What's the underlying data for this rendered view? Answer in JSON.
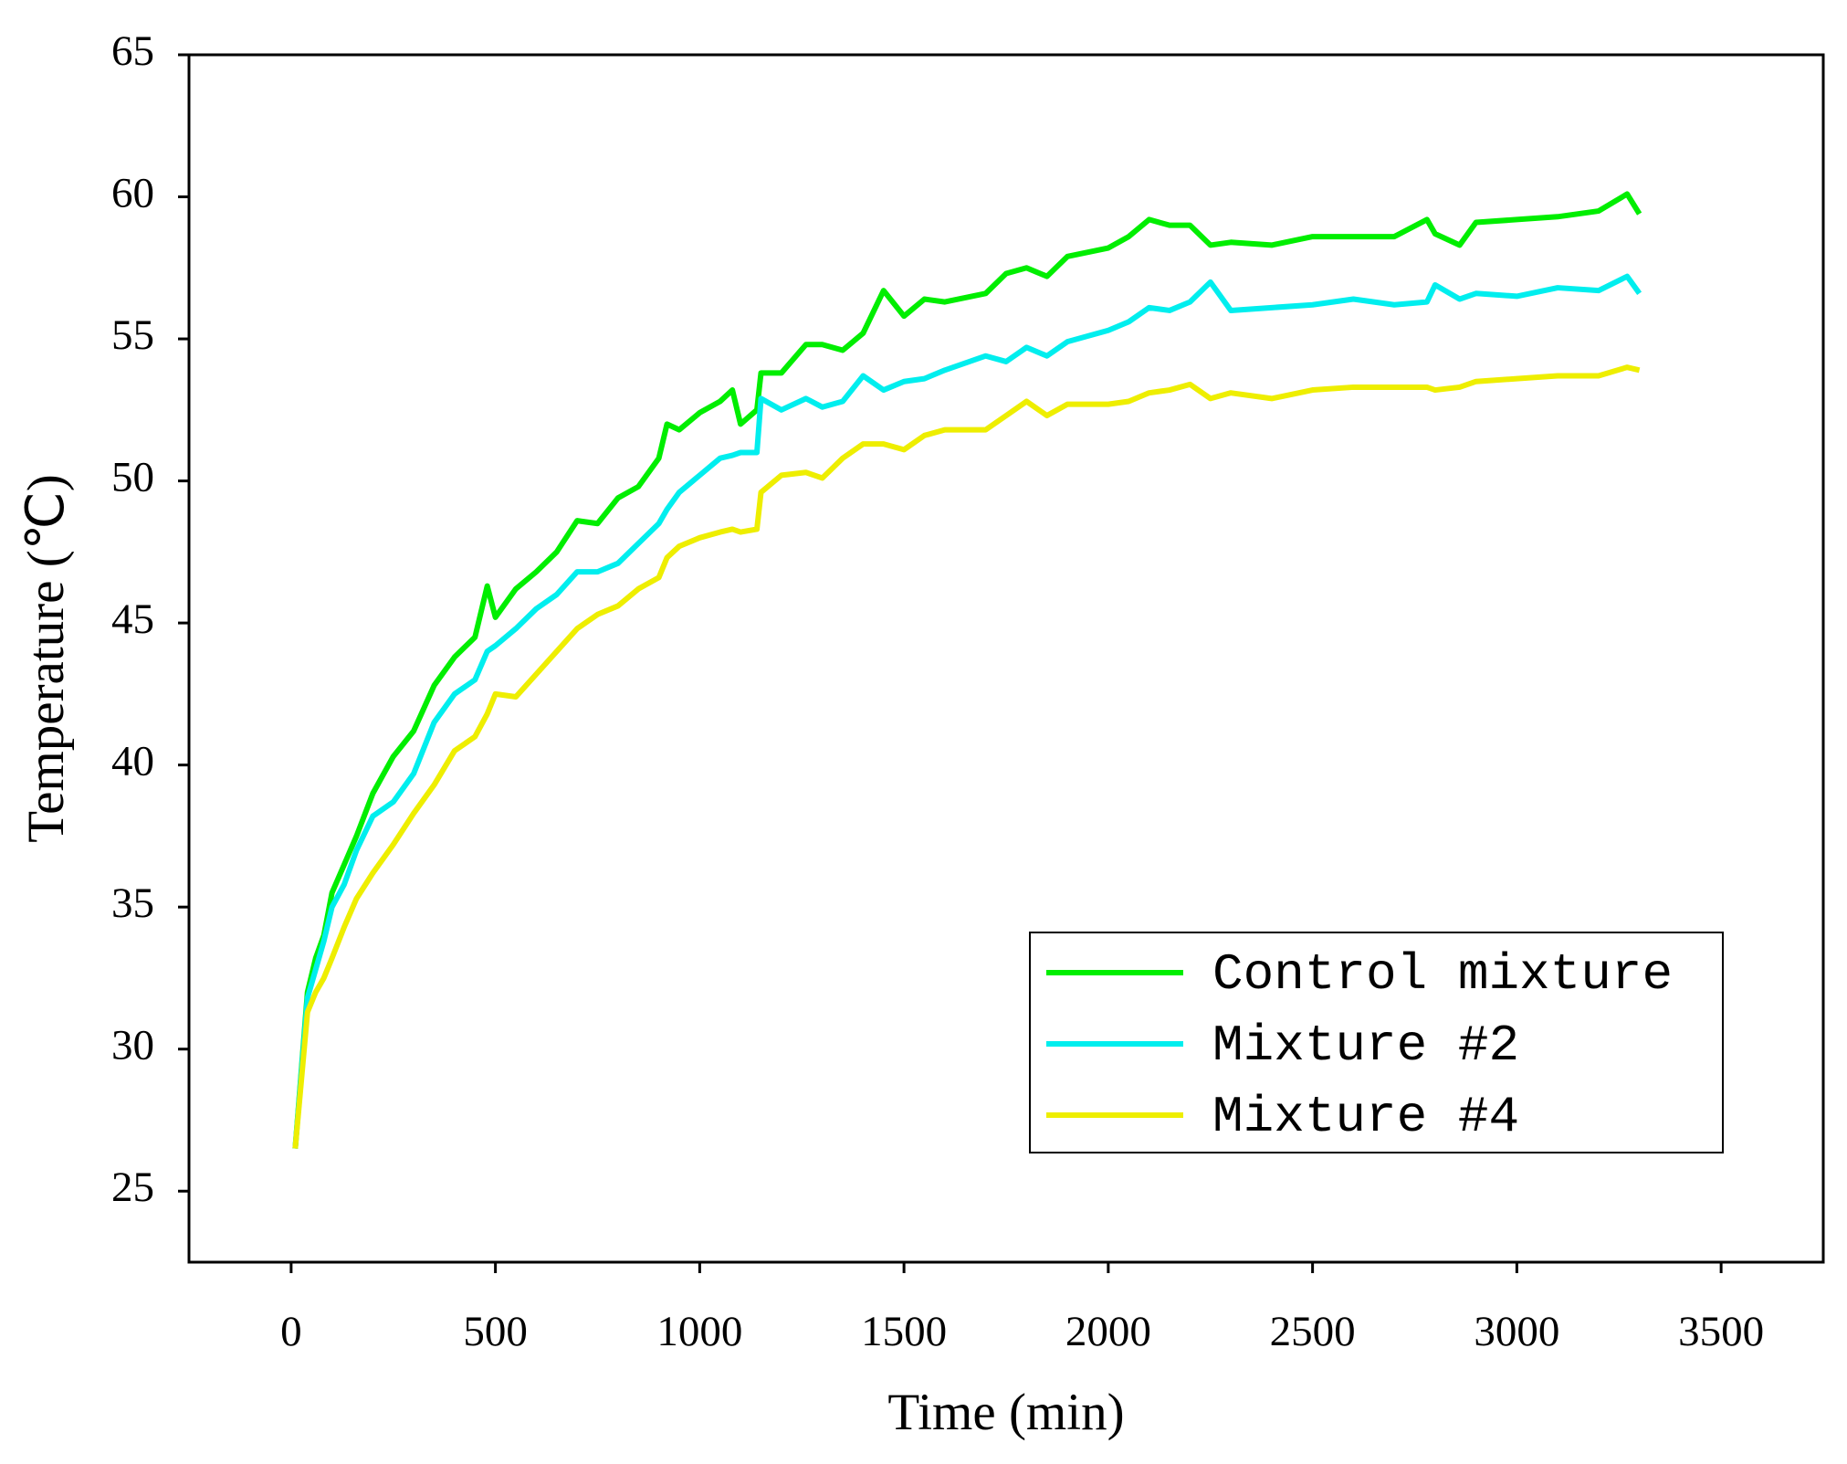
{
  "chart_data": {
    "type": "line",
    "x_label": "Time (min)",
    "y_label": "Temperature (℃)",
    "x": [
      10,
      40,
      60,
      80,
      100,
      130,
      160,
      200,
      250,
      300,
      350,
      400,
      450,
      480,
      500,
      550,
      600,
      650,
      700,
      750,
      800,
      850,
      900,
      920,
      950,
      1000,
      1050,
      1080,
      1100,
      1140,
      1150,
      1200,
      1260,
      1300,
      1350,
      1400,
      1450,
      1500,
      1550,
      1600,
      1700,
      1750,
      1800,
      1850,
      1900,
      2000,
      2050,
      2100,
      2150,
      2200,
      2250,
      2300,
      2400,
      2500,
      2600,
      2700,
      2780,
      2800,
      2860,
      2900,
      3000,
      3100,
      3200,
      3270,
      3300
    ],
    "series": [
      {
        "name": "Control mixture",
        "color": "#00ee00",
        "values": [
          26.5,
          32,
          33.2,
          34,
          35.5,
          36.5,
          37.5,
          39,
          40.3,
          41.2,
          42.8,
          43.8,
          44.5,
          46.3,
          45.2,
          46.2,
          46.8,
          47.5,
          48.6,
          48.5,
          49.4,
          49.8,
          50.8,
          52,
          51.8,
          52.4,
          52.8,
          53.2,
          52,
          52.5,
          53.8,
          53.8,
          54.8,
          54.8,
          54.6,
          55.2,
          56.7,
          55.8,
          56.4,
          56.3,
          56.6,
          57.3,
          57.5,
          57.2,
          57.9,
          58.2,
          58.6,
          59.2,
          59,
          59,
          58.3,
          58.4,
          58.3,
          58.6,
          58.6,
          58.6,
          59.2,
          58.7,
          58.3,
          59.1,
          59.2,
          59.3,
          59.5,
          60.1,
          59.4
        ]
      },
      {
        "name": "Mixture #2",
        "color": "#00eeee",
        "values": [
          26.5,
          31.8,
          32.8,
          33.8,
          35,
          35.8,
          37,
          38.2,
          38.7,
          39.7,
          41.5,
          42.5,
          43,
          44,
          44.2,
          44.8,
          45.5,
          46,
          46.8,
          46.8,
          47.1,
          47.8,
          48.5,
          49,
          49.6,
          50.2,
          50.8,
          50.9,
          51,
          51,
          52.9,
          52.5,
          52.9,
          52.6,
          52.8,
          53.7,
          53.2,
          53.5,
          53.6,
          53.9,
          54.4,
          54.2,
          54.7,
          54.4,
          54.9,
          55.3,
          55.6,
          56.1,
          56,
          56.3,
          57,
          56,
          56.1,
          56.2,
          56.4,
          56.2,
          56.3,
          56.9,
          56.4,
          56.6,
          56.5,
          56.8,
          56.7,
          57.2,
          56.6
        ]
      },
      {
        "name": "Mixture #4",
        "color": "#eeee00",
        "values": [
          26.5,
          31.3,
          32,
          32.5,
          33.2,
          34.3,
          35.3,
          36.2,
          37.2,
          38.3,
          39.3,
          40.5,
          41,
          41.8,
          42.5,
          42.4,
          43.2,
          44,
          44.8,
          45.3,
          45.6,
          46.2,
          46.6,
          47.3,
          47.7,
          48,
          48.2,
          48.3,
          48.2,
          48.3,
          49.6,
          50.2,
          50.3,
          50.1,
          50.8,
          51.3,
          51.3,
          51.1,
          51.6,
          51.8,
          51.8,
          52.3,
          52.8,
          52.3,
          52.7,
          52.7,
          52.8,
          53.1,
          53.2,
          53.4,
          52.9,
          53.1,
          52.9,
          53.2,
          53.3,
          53.3,
          53.3,
          53.2,
          53.3,
          53.5,
          53.6,
          53.7,
          53.7,
          54,
          53.9
        ]
      }
    ],
    "xlim": [
      -250,
      3750
    ],
    "xticks": [
      0,
      500,
      1000,
      1500,
      2000,
      2500,
      3000,
      3500
    ],
    "ylim": [
      22.5,
      65
    ],
    "yticks": [
      25,
      30,
      35,
      40,
      45,
      50,
      55,
      60,
      65
    ],
    "grid": false,
    "legend": "lower right"
  }
}
